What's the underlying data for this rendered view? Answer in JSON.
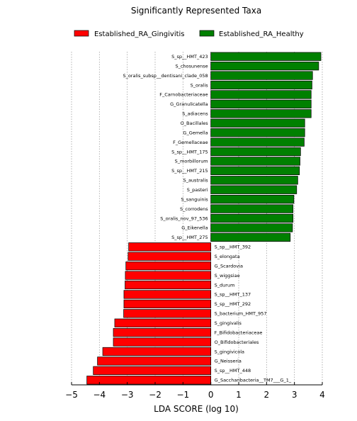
{
  "chart_data": {
    "type": "bar",
    "orientation": "horizontal",
    "title": "Significantly Represented Taxa",
    "xlabel": "LDA SCORE (log 10)",
    "ylabel": "",
    "xlim": [
      -5,
      4
    ],
    "xticks": [
      -5,
      -4,
      -3,
      -2,
      -1,
      0,
      1,
      2,
      3,
      4
    ],
    "xtick_labels": [
      "−5",
      "−4",
      "−3",
      "−2",
      "−1",
      "0",
      "1",
      "2",
      "3",
      "4"
    ],
    "grid": "vertical-dotted",
    "legend_position": "top",
    "series": [
      {
        "name": "Established_RA_Gingivitis",
        "color": "#ff0000"
      },
      {
        "name": "Established_RA_Healthy",
        "color": "#008000"
      }
    ],
    "bars": [
      {
        "label": "S_sp__HMT_423",
        "value": 3.95,
        "series": 1
      },
      {
        "label": "S_chosunense",
        "value": 3.87,
        "series": 1
      },
      {
        "label": "S_oralis_subsp__dentisani_clade_058",
        "value": 3.65,
        "series": 1
      },
      {
        "label": "S_oralis",
        "value": 3.63,
        "series": 1
      },
      {
        "label": "F_Carnobacteriaceae",
        "value": 3.6,
        "series": 1
      },
      {
        "label": "G_Granulicatella",
        "value": 3.6,
        "series": 1
      },
      {
        "label": "S_adiacens",
        "value": 3.6,
        "series": 1
      },
      {
        "label": "O_Bacillales",
        "value": 3.37,
        "series": 1
      },
      {
        "label": "G_Gemella",
        "value": 3.37,
        "series": 1
      },
      {
        "label": "F_Gemellaceae",
        "value": 3.35,
        "series": 1
      },
      {
        "label": "S_sp__HMT_175",
        "value": 3.22,
        "series": 1
      },
      {
        "label": "S_morbillorum",
        "value": 3.2,
        "series": 1
      },
      {
        "label": "S_sp__HMT_215",
        "value": 3.18,
        "series": 1
      },
      {
        "label": "S_australis",
        "value": 3.12,
        "series": 1
      },
      {
        "label": "S_pasteri",
        "value": 3.08,
        "series": 1
      },
      {
        "label": "S_sanguinis",
        "value": 2.98,
        "series": 1
      },
      {
        "label": "S_corrodens",
        "value": 2.95,
        "series": 1
      },
      {
        "label": "S_oralis_nov_97_536",
        "value": 2.95,
        "series": 1
      },
      {
        "label": "G_Eikenella",
        "value": 2.93,
        "series": 1
      },
      {
        "label": "S_sp__HMT_275",
        "value": 2.85,
        "series": 1
      },
      {
        "label": "S_sp__HMT_392",
        "value": -2.95,
        "series": 0
      },
      {
        "label": "S_elongata",
        "value": -2.97,
        "series": 0
      },
      {
        "label": "G_Scardovia",
        "value": -3.05,
        "series": 0
      },
      {
        "label": "S_wiggsiae",
        "value": -3.07,
        "series": 0
      },
      {
        "label": "S_durum",
        "value": -3.08,
        "series": 0
      },
      {
        "label": "S_sp__HMT_137",
        "value": -3.12,
        "series": 0
      },
      {
        "label": "S_sp__HMT_292",
        "value": -3.12,
        "series": 0
      },
      {
        "label": "S_bacterium_HMT_957",
        "value": -3.13,
        "series": 0
      },
      {
        "label": "S_gingivalis",
        "value": -3.45,
        "series": 0
      },
      {
        "label": "F_Bifidobacteriaceae",
        "value": -3.5,
        "series": 0
      },
      {
        "label": "O_Bifidobacteriales",
        "value": -3.5,
        "series": 0
      },
      {
        "label": "S_gingivicola",
        "value": -3.88,
        "series": 0
      },
      {
        "label": "G_Neisseria",
        "value": -4.07,
        "series": 0
      },
      {
        "label": "S_sp__HMT_448",
        "value": -4.22,
        "series": 0
      },
      {
        "label": "G_Saccharibacteria__TM7___G_1_",
        "value": -4.45,
        "series": 0
      }
    ]
  }
}
